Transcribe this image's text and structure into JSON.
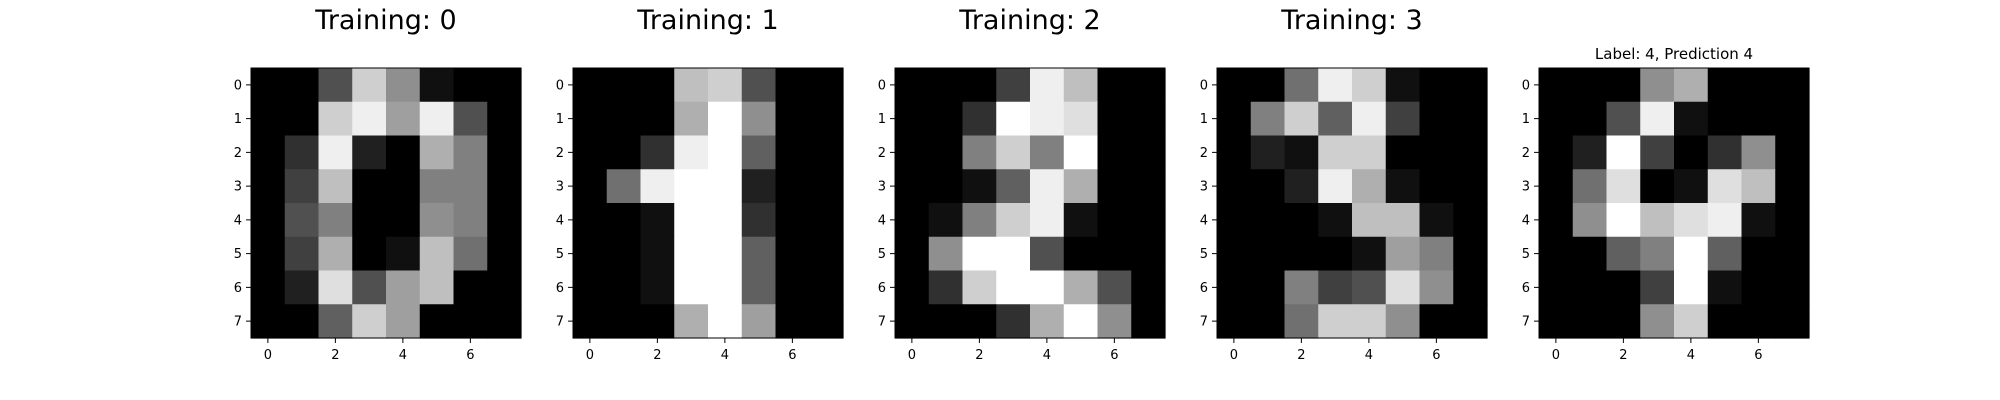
{
  "chart_data": [
    {
      "type": "heatmap",
      "title": "Training: 0",
      "colormap": "gray_r",
      "value_range": [
        0,
        16
      ],
      "x_ticks": [
        0,
        2,
        4,
        6
      ],
      "y_ticks": [
        0,
        1,
        2,
        3,
        4,
        5,
        6,
        7
      ],
      "values": [
        [
          0,
          0,
          5,
          13,
          9,
          1,
          0,
          0
        ],
        [
          0,
          0,
          13,
          15,
          10,
          15,
          5,
          0
        ],
        [
          0,
          3,
          15,
          2,
          0,
          11,
          8,
          0
        ],
        [
          0,
          4,
          12,
          0,
          0,
          8,
          8,
          0
        ],
        [
          0,
          5,
          8,
          0,
          0,
          9,
          8,
          0
        ],
        [
          0,
          4,
          11,
          0,
          1,
          12,
          7,
          0
        ],
        [
          0,
          2,
          14,
          5,
          10,
          12,
          0,
          0
        ],
        [
          0,
          0,
          6,
          13,
          10,
          0,
          0,
          0
        ]
      ]
    },
    {
      "type": "heatmap",
      "title": "Training: 1",
      "colormap": "gray_r",
      "value_range": [
        0,
        16
      ],
      "x_ticks": [
        0,
        2,
        4,
        6
      ],
      "y_ticks": [
        0,
        1,
        2,
        3,
        4,
        5,
        6,
        7
      ],
      "values": [
        [
          0,
          0,
          0,
          12,
          13,
          5,
          0,
          0
        ],
        [
          0,
          0,
          0,
          11,
          16,
          9,
          0,
          0
        ],
        [
          0,
          0,
          3,
          15,
          16,
          6,
          0,
          0
        ],
        [
          0,
          7,
          15,
          16,
          16,
          2,
          0,
          0
        ],
        [
          0,
          0,
          1,
          16,
          16,
          3,
          0,
          0
        ],
        [
          0,
          0,
          1,
          16,
          16,
          6,
          0,
          0
        ],
        [
          0,
          0,
          1,
          16,
          16,
          6,
          0,
          0
        ],
        [
          0,
          0,
          0,
          11,
          16,
          10,
          0,
          0
        ]
      ]
    },
    {
      "type": "heatmap",
      "title": "Training: 2",
      "colormap": "gray_r",
      "value_range": [
        0,
        16
      ],
      "x_ticks": [
        0,
        2,
        4,
        6
      ],
      "y_ticks": [
        0,
        1,
        2,
        3,
        4,
        5,
        6,
        7
      ],
      "values": [
        [
          0,
          0,
          0,
          4,
          15,
          12,
          0,
          0
        ],
        [
          0,
          0,
          3,
          16,
          15,
          14,
          0,
          0
        ],
        [
          0,
          0,
          8,
          13,
          8,
          16,
          0,
          0
        ],
        [
          0,
          0,
          1,
          6,
          15,
          11,
          0,
          0
        ],
        [
          0,
          1,
          8,
          13,
          15,
          1,
          0,
          0
        ],
        [
          0,
          9,
          16,
          16,
          5,
          0,
          0,
          0
        ],
        [
          0,
          3,
          13,
          16,
          16,
          11,
          5,
          0
        ],
        [
          0,
          0,
          0,
          3,
          11,
          16,
          9,
          0
        ]
      ]
    },
    {
      "type": "heatmap",
      "title": "Training: 3",
      "colormap": "gray_r",
      "value_range": [
        0,
        16
      ],
      "x_ticks": [
        0,
        2,
        4,
        6
      ],
      "y_ticks": [
        0,
        1,
        2,
        3,
        4,
        5,
        6,
        7
      ],
      "values": [
        [
          0,
          0,
          7,
          15,
          13,
          1,
          0,
          0
        ],
        [
          0,
          8,
          13,
          6,
          15,
          4,
          0,
          0
        ],
        [
          0,
          2,
          1,
          13,
          13,
          0,
          0,
          0
        ],
        [
          0,
          0,
          2,
          15,
          11,
          1,
          0,
          0
        ],
        [
          0,
          0,
          0,
          1,
          12,
          12,
          1,
          0
        ],
        [
          0,
          0,
          0,
          0,
          1,
          10,
          8,
          0
        ],
        [
          0,
          0,
          8,
          4,
          5,
          14,
          9,
          0
        ],
        [
          0,
          0,
          7,
          13,
          13,
          9,
          0,
          0
        ]
      ]
    },
    {
      "type": "heatmap",
      "title": "Label: 4, Prediction 4",
      "colormap": "gray_r",
      "value_range": [
        0,
        16
      ],
      "x_ticks": [
        0,
        2,
        4,
        6
      ],
      "y_ticks": [
        0,
        1,
        2,
        3,
        4,
        5,
        6,
        7
      ],
      "values": [
        [
          0,
          0,
          0,
          9,
          11,
          0,
          0,
          0
        ],
        [
          0,
          0,
          5,
          15,
          1,
          0,
          0,
          0
        ],
        [
          0,
          2,
          16,
          4,
          0,
          3,
          9,
          0
        ],
        [
          0,
          7,
          14,
          0,
          1,
          14,
          12,
          0
        ],
        [
          0,
          9,
          16,
          12,
          14,
          15,
          1,
          0
        ],
        [
          0,
          0,
          6,
          8,
          16,
          6,
          0,
          0
        ],
        [
          0,
          0,
          0,
          4,
          16,
          1,
          0,
          0
        ],
        [
          0,
          0,
          0,
          9,
          13,
          0,
          0,
          0
        ]
      ]
    }
  ]
}
